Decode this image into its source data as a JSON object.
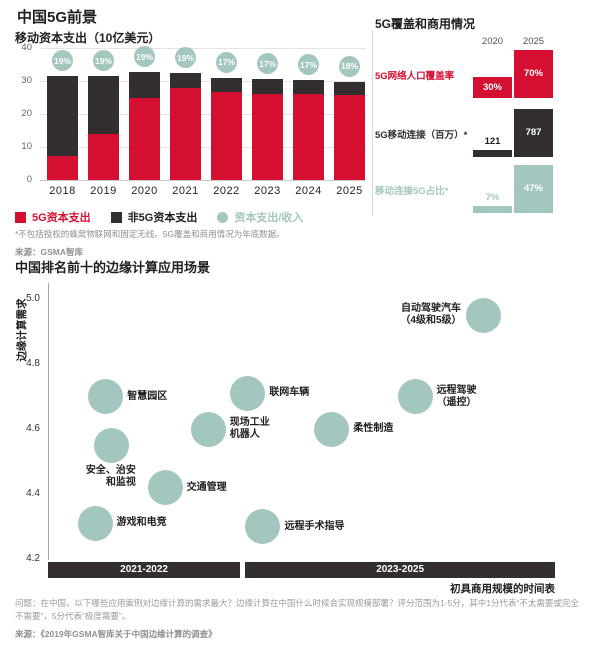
{
  "theme": {
    "red": "#d40f31",
    "black": "#332e30",
    "teal": "#a3c6bf",
    "text_dark": "#221e1f",
    "text_gray": "#8f8f8f"
  },
  "header": {
    "title": "中国5G前景"
  },
  "capex_section": {
    "subtitle": "移动资本支出（10亿美元）",
    "legend": [
      {
        "label": "5G资本支出",
        "color": "#d40f31",
        "shape": "square"
      },
      {
        "label": "非5G资本支出",
        "color": "#332e30",
        "shape": "square"
      },
      {
        "label": "资本支出/收入",
        "color": "#a3c6bf",
        "shape": "circle"
      }
    ],
    "footnote": "*不包括授权的蜂窝物联网和固定无线。5G覆盖和商用情况为年底数据。",
    "source": "来源：GSMA智库"
  },
  "edge_section": {
    "question": "问题：在中国，以下哪些应用案例对边缘计算的需求最大？边缘计算在中国什么时候会实现规模部署？评分范围为1-5分，其中1分代表“不太需要或完全不需要”，5分代表“极度需要”。",
    "source": "来源：《2019年GSMA智库关于中国边缘计算的调查》"
  },
  "chart_data": [
    {
      "id": "capex",
      "type": "bar",
      "title": "移动资本支出（10亿美元）",
      "categories": [
        "2018",
        "2019",
        "2020",
        "2021",
        "2022",
        "2023",
        "2024",
        "2025"
      ],
      "series": [
        {
          "name": "5G资本支出",
          "color": "#d40f31",
          "values": [
            7.3,
            13.8,
            24.9,
            27.9,
            26.7,
            26.1,
            26.0,
            25.7
          ]
        },
        {
          "name": "非5G资本支出",
          "color": "#332e30",
          "values": [
            24.2,
            17.7,
            7.8,
            4.4,
            4.3,
            4.4,
            4.2,
            4.0
          ]
        }
      ],
      "ratio_markers": {
        "name": "资本支出/收入",
        "color": "#a3c6bf",
        "values_pct": [
          19,
          19,
          19,
          19,
          17,
          17,
          17,
          18
        ]
      },
      "ylim": [
        0,
        40
      ],
      "yticks": [
        0,
        10,
        20,
        30,
        40
      ],
      "grid": true,
      "legend_position": "bottom"
    },
    {
      "id": "coverage",
      "type": "table",
      "title": "5G覆盖和商用情况",
      "columns": [
        "2020",
        "2025"
      ],
      "rows": [
        {
          "label": "5G网络人口覆盖率",
          "color": "#d40f31",
          "values": [
            "30%",
            "70%"
          ],
          "numeric": [
            30,
            70
          ]
        },
        {
          "label": "5G移动连接（百万）*",
          "color": "#332e30",
          "values": [
            "121",
            "787"
          ],
          "numeric": [
            121,
            787
          ]
        },
        {
          "label": "移动连接5G占比*",
          "color": "#a3c6bf",
          "values": [
            "7%",
            "47%"
          ],
          "numeric": [
            7,
            47
          ]
        }
      ]
    },
    {
      "id": "edge",
      "type": "scatter",
      "title": "中国排名前十的边缘计算应用场景",
      "ylabel": "边缘计算需求",
      "xlabel": "初具商用规模的时间表",
      "yticks": [
        5.0,
        4.8,
        4.6,
        4.4,
        4.2
      ],
      "ylim": [
        4.2,
        5.05
      ],
      "x_periods": [
        {
          "label": "2021-2022",
          "span": [
            0.0,
            0.379
          ]
        },
        {
          "label": "2023-2025",
          "span": [
            0.389,
            1.0
          ]
        }
      ],
      "points": [
        {
          "label": "智慧园区",
          "lines": [
            "智慧园区"
          ],
          "x": 0.114,
          "y": 4.7,
          "side": "right",
          "align": "left"
        },
        {
          "label": "安全、治安和监视",
          "lines": [
            "安全、治安",
            "和监视"
          ],
          "x": 0.126,
          "y": 4.55,
          "side": "below",
          "align": "right"
        },
        {
          "label": "游戏和电竞",
          "lines": [
            "游戏和电竞"
          ],
          "x": 0.093,
          "y": 4.31,
          "side": "right",
          "align": "left"
        },
        {
          "label": "交通管理",
          "lines": [
            "交通管理"
          ],
          "x": 0.231,
          "y": 4.42,
          "side": "right",
          "align": "left"
        },
        {
          "label": "现场工业机器人",
          "lines": [
            "现场工业",
            "机器人"
          ],
          "x": 0.316,
          "y": 4.6,
          "side": "right",
          "align": "left"
        },
        {
          "label": "联网车辆",
          "lines": [
            "联网车辆"
          ],
          "x": 0.394,
          "y": 4.71,
          "side": "right",
          "align": "left"
        },
        {
          "label": "远程手术指导",
          "lines": [
            "远程手术指导"
          ],
          "x": 0.424,
          "y": 4.3,
          "side": "right",
          "align": "left"
        },
        {
          "label": "柔性制造",
          "lines": [
            "柔性制造"
          ],
          "x": 0.56,
          "y": 4.6,
          "side": "right",
          "align": "left"
        },
        {
          "label": "远程驾驶（遥控）",
          "lines": [
            "远程驾驶",
            "（遥控）"
          ],
          "x": 0.724,
          "y": 4.7,
          "side": "right",
          "align": "center"
        },
        {
          "label": "自动驾驶汽车（4级和5级）",
          "lines": [
            "自动驾驶汽车",
            "（4级和5级）"
          ],
          "x": 0.858,
          "y": 4.95,
          "side": "left",
          "align": "center"
        }
      ]
    }
  ]
}
